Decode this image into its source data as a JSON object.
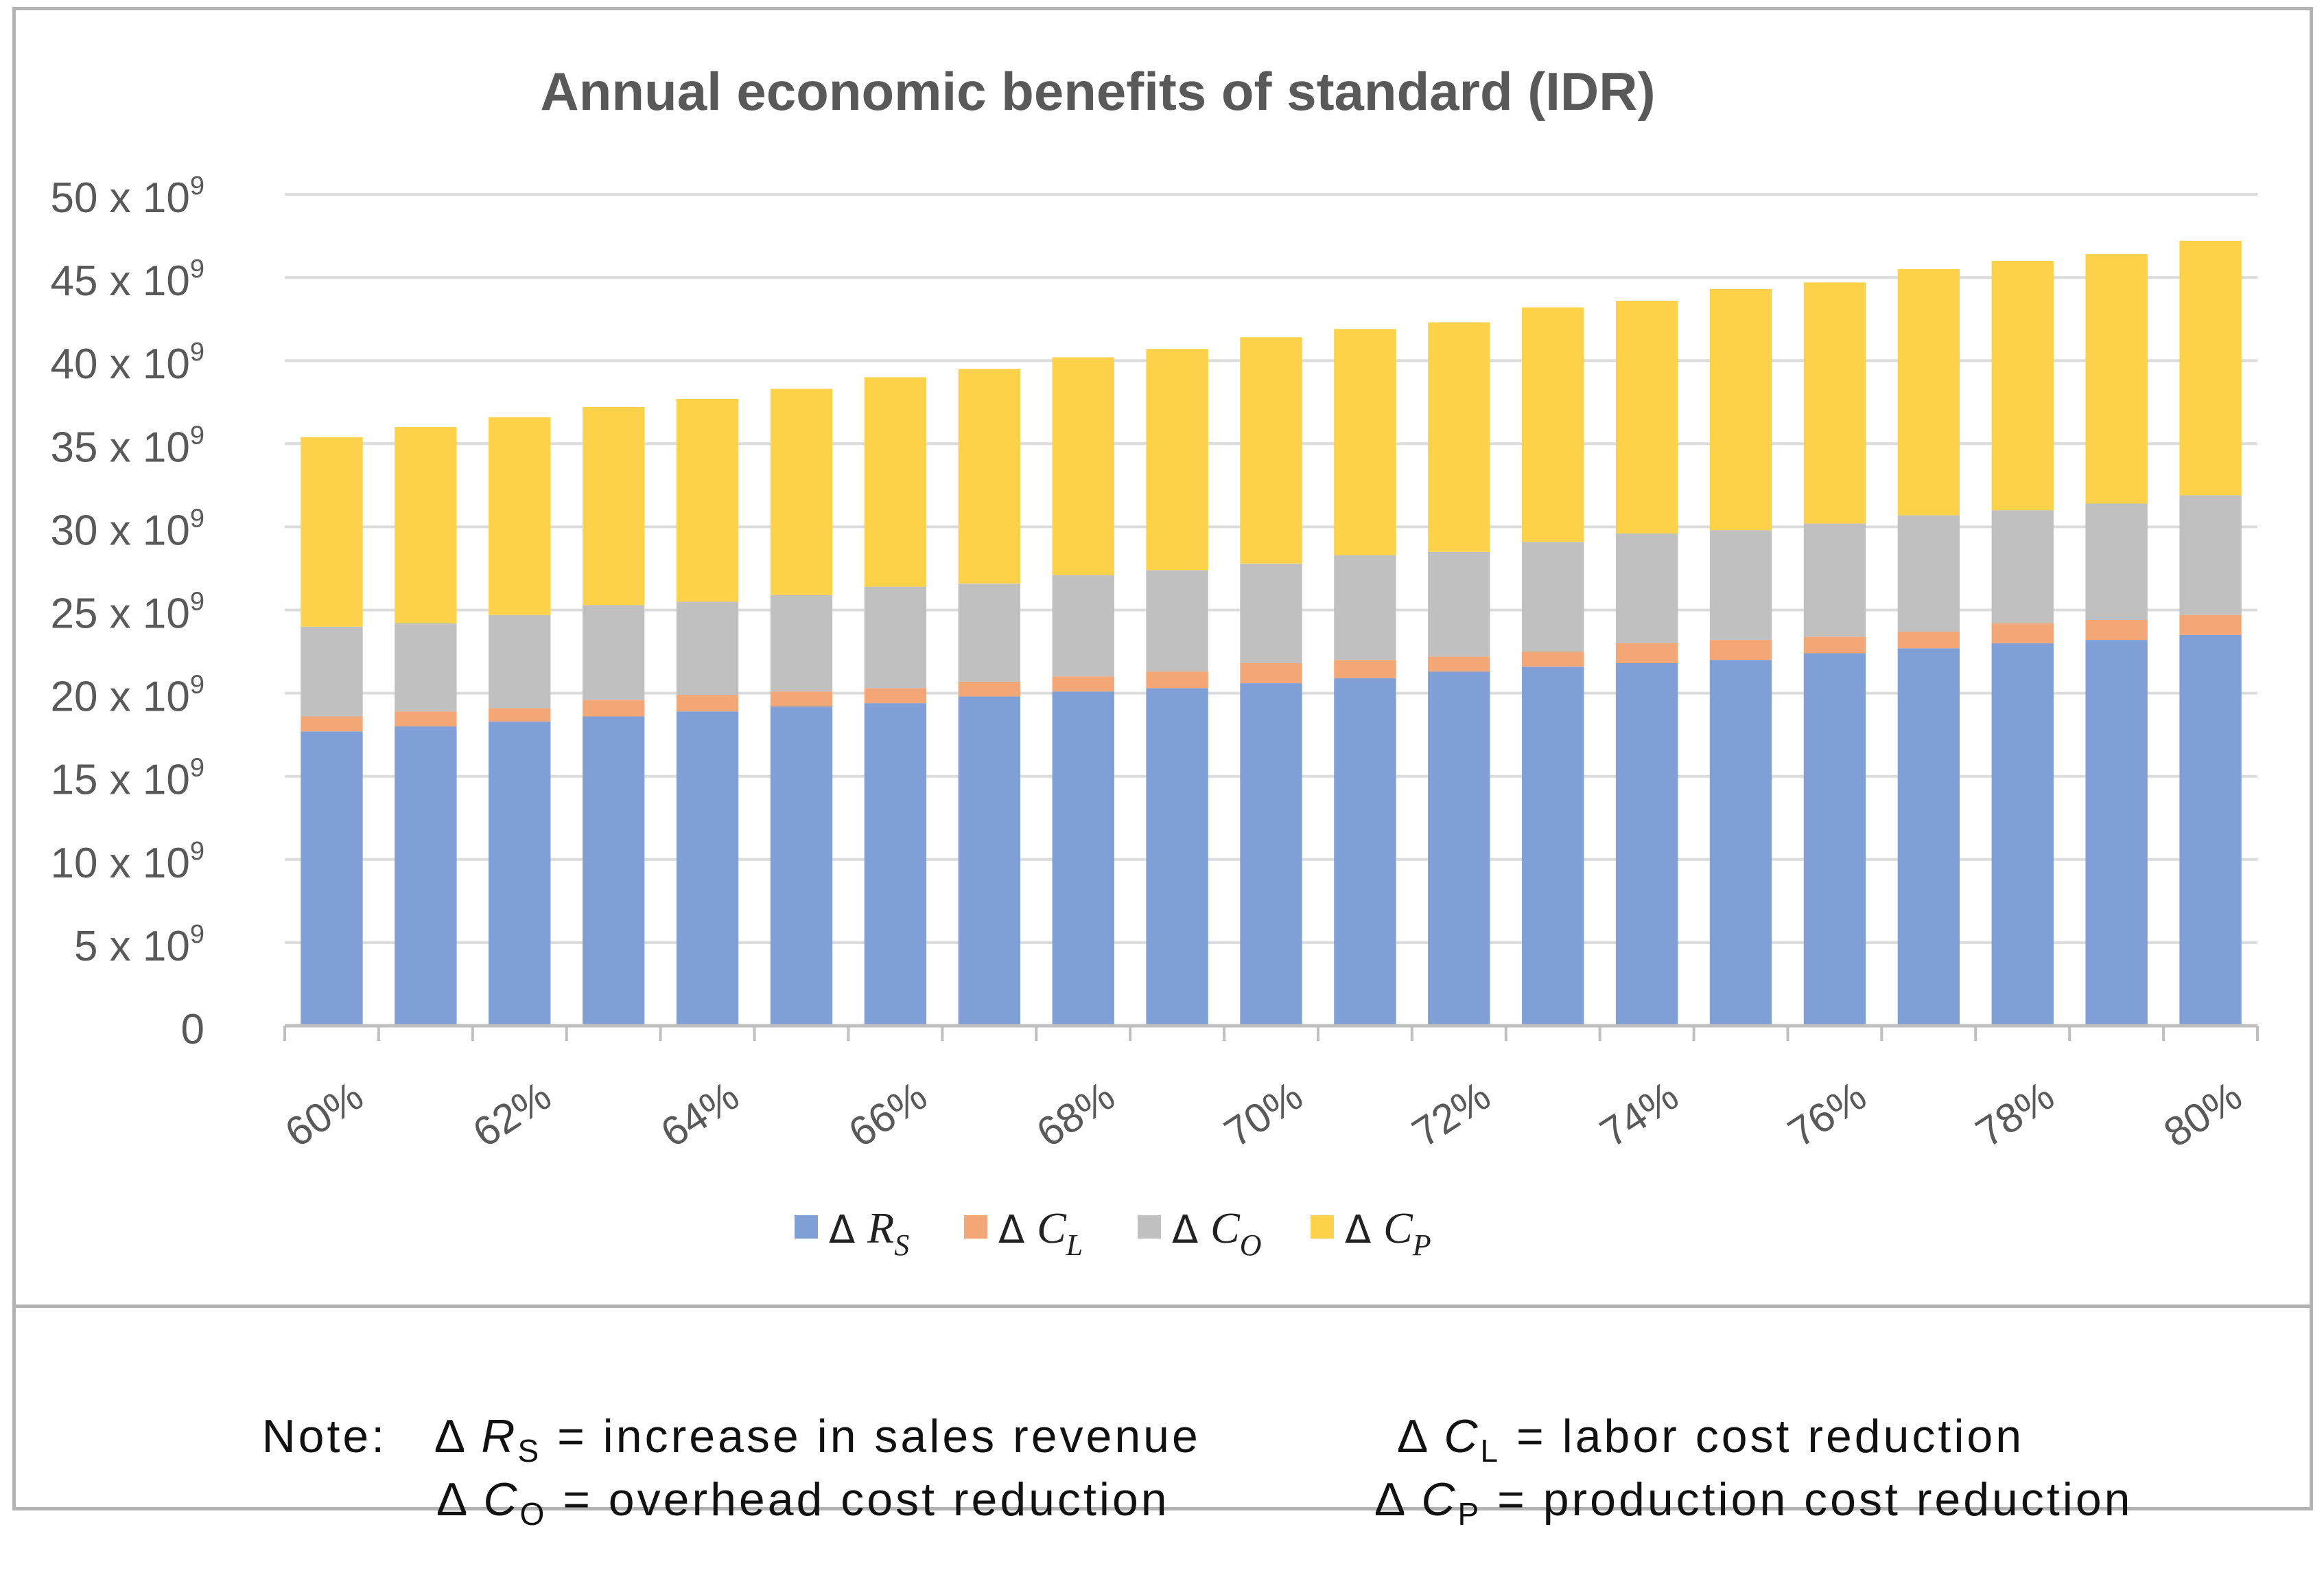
{
  "chart_data": {
    "type": "stacked-bar",
    "title": "Annual economic benefits of standard (IDR)",
    "categories": [
      "60%",
      "61%",
      "62%",
      "63%",
      "64%",
      "65%",
      "66%",
      "67%",
      "68%",
      "69%",
      "70%",
      "71%",
      "72%",
      "73%",
      "74%",
      "75%",
      "76%",
      "77%",
      "78%",
      "79%",
      "80%"
    ],
    "x_tick_labels": [
      "60%",
      "62%",
      "64%",
      "66%",
      "68%",
      "70%",
      "72%",
      "74%",
      "76%",
      "78%",
      "80%"
    ],
    "y_tick_labels": [
      {
        "base": "0",
        "exp": ""
      },
      {
        "base": "5 x 10",
        "exp": "9"
      },
      {
        "base": "10 x 10",
        "exp": "9"
      },
      {
        "base": "15 x 10",
        "exp": "9"
      },
      {
        "base": "20 x 10",
        "exp": "9"
      },
      {
        "base": "25 x 10",
        "exp": "9"
      },
      {
        "base": "30 x 10",
        "exp": "9"
      },
      {
        "base": "35 x 10",
        "exp": "9"
      },
      {
        "base": "40 x 10",
        "exp": "9"
      },
      {
        "base": "45 x 10",
        "exp": "9"
      },
      {
        "base": "50 x 10",
        "exp": "9"
      }
    ],
    "y_unit": "x 10^9 IDR",
    "ylim": [
      0,
      50
    ],
    "grid": true,
    "legend_position": "bottom",
    "series": [
      {
        "name": "Δ R_S",
        "delta": "Δ",
        "symbol": "R",
        "sub": "S",
        "color": "#7f9fd6",
        "values": [
          17.7,
          18.0,
          18.3,
          18.6,
          18.9,
          19.2,
          19.4,
          19.8,
          20.1,
          20.3,
          20.6,
          20.9,
          21.3,
          21.6,
          21.8,
          22.0,
          22.4,
          22.7,
          23.0,
          23.2,
          23.5
        ]
      },
      {
        "name": "Δ C_L",
        "delta": "Δ",
        "symbol": "C",
        "sub": "L",
        "color": "#f3a676",
        "values": [
          0.9,
          0.9,
          0.8,
          1.0,
          1.0,
          0.9,
          0.9,
          0.9,
          0.9,
          1.0,
          1.2,
          1.1,
          0.9,
          0.9,
          1.2,
          1.2,
          1.0,
          1.0,
          1.2,
          1.2,
          1.2
        ]
      },
      {
        "name": "Δ C_O",
        "delta": "Δ",
        "symbol": "C",
        "sub": "O",
        "color": "#c0c0c0",
        "values": [
          5.4,
          5.3,
          5.6,
          5.7,
          5.6,
          5.8,
          6.1,
          5.9,
          6.1,
          6.1,
          6.0,
          6.3,
          6.3,
          6.6,
          6.6,
          6.6,
          6.8,
          7.0,
          6.8,
          7.0,
          7.2
        ]
      },
      {
        "name": "Δ C_P",
        "delta": "Δ",
        "symbol": "C",
        "sub": "P",
        "color": "#fdd24a",
        "values": [
          11.4,
          11.8,
          11.9,
          11.9,
          12.2,
          12.4,
          12.6,
          12.9,
          13.1,
          13.3,
          13.6,
          13.6,
          13.8,
          14.1,
          14.0,
          14.5,
          14.5,
          14.8,
          15.0,
          15.0,
          15.3
        ]
      }
    ]
  },
  "note": {
    "label": "Note:",
    "delta": "Δ",
    "items": [
      {
        "symbol": "R",
        "sub": "S",
        "text": "= increase in sales revenue"
      },
      {
        "symbol": "C",
        "sub": "L",
        "text": "= labor cost reduction"
      },
      {
        "symbol": "C",
        "sub": "O",
        "text": "= overhead cost reduction"
      },
      {
        "symbol": "C",
        "sub": "P",
        "text": "= production cost reduction"
      }
    ]
  }
}
